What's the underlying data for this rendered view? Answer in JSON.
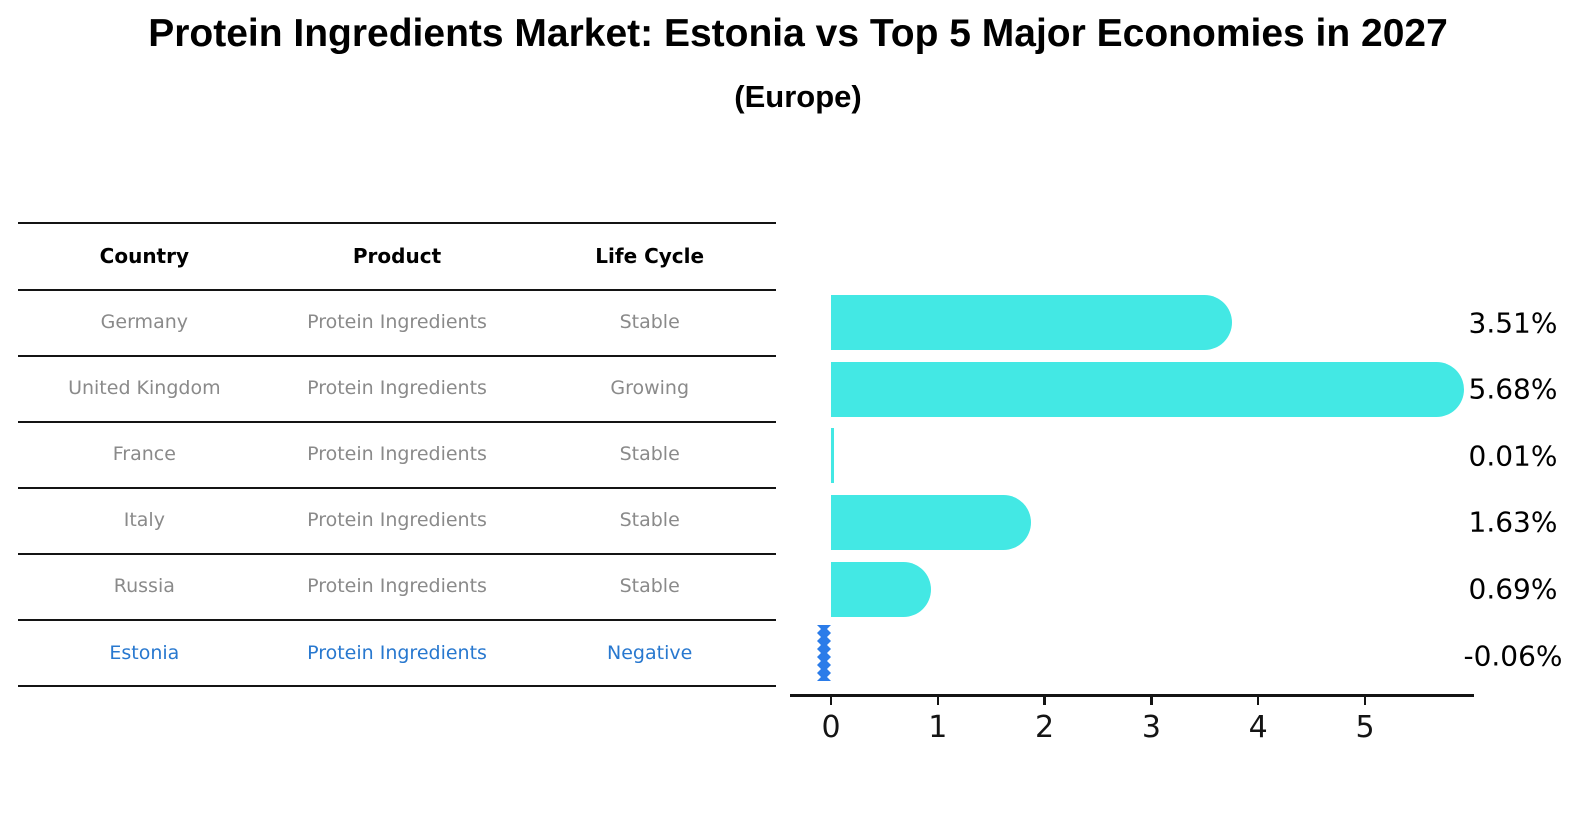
{
  "title": "Protein Ingredients Market: Estonia vs Top 5 Major Economies in 2027",
  "subtitle": "(Europe)",
  "table": {
    "headers": [
      "Country",
      "Product",
      "Life Cycle"
    ],
    "rows": [
      {
        "country": "Germany",
        "product": "Protein Ingredients",
        "life_cycle": "Stable",
        "highlight": false
      },
      {
        "country": "United Kingdom",
        "product": "Protein Ingredients",
        "life_cycle": "Growing",
        "highlight": false
      },
      {
        "country": "France",
        "product": "Protein Ingredients",
        "life_cycle": "Stable",
        "highlight": false
      },
      {
        "country": "Italy",
        "product": "Protein Ingredients",
        "life_cycle": "Stable",
        "highlight": false
      },
      {
        "country": "Russia",
        "product": "Protein Ingredients",
        "life_cycle": "Stable",
        "highlight": false
      },
      {
        "country": "Estonia",
        "product": "Protein Ingredients",
        "life_cycle": "Negative",
        "highlight": true
      }
    ]
  },
  "chart_data": {
    "type": "bar",
    "orientation": "horizontal",
    "categories": [
      "Germany",
      "United Kingdom",
      "France",
      "Italy",
      "Russia",
      "Estonia"
    ],
    "values": [
      3.51,
      5.68,
      0.01,
      1.63,
      0.69,
      -0.06
    ],
    "value_labels": [
      "3.51%",
      "5.68%",
      "0.01%",
      "1.63%",
      "0.69%",
      "-0.06%"
    ],
    "xticks": [
      "0",
      "1",
      "2",
      "3",
      "4",
      "5"
    ],
    "xlim": [
      -0.4,
      6.0
    ],
    "grid": false,
    "legend": "none",
    "bar_color": "#43E8E4",
    "highlight_bar_color": "#2B7CE9",
    "highlight_index": 5
  },
  "colors": {
    "table_text": "#8a8a8a",
    "header_text": "#000000",
    "highlight_text": "#2878cf",
    "axis": "#141414",
    "background": "#ffffff"
  }
}
